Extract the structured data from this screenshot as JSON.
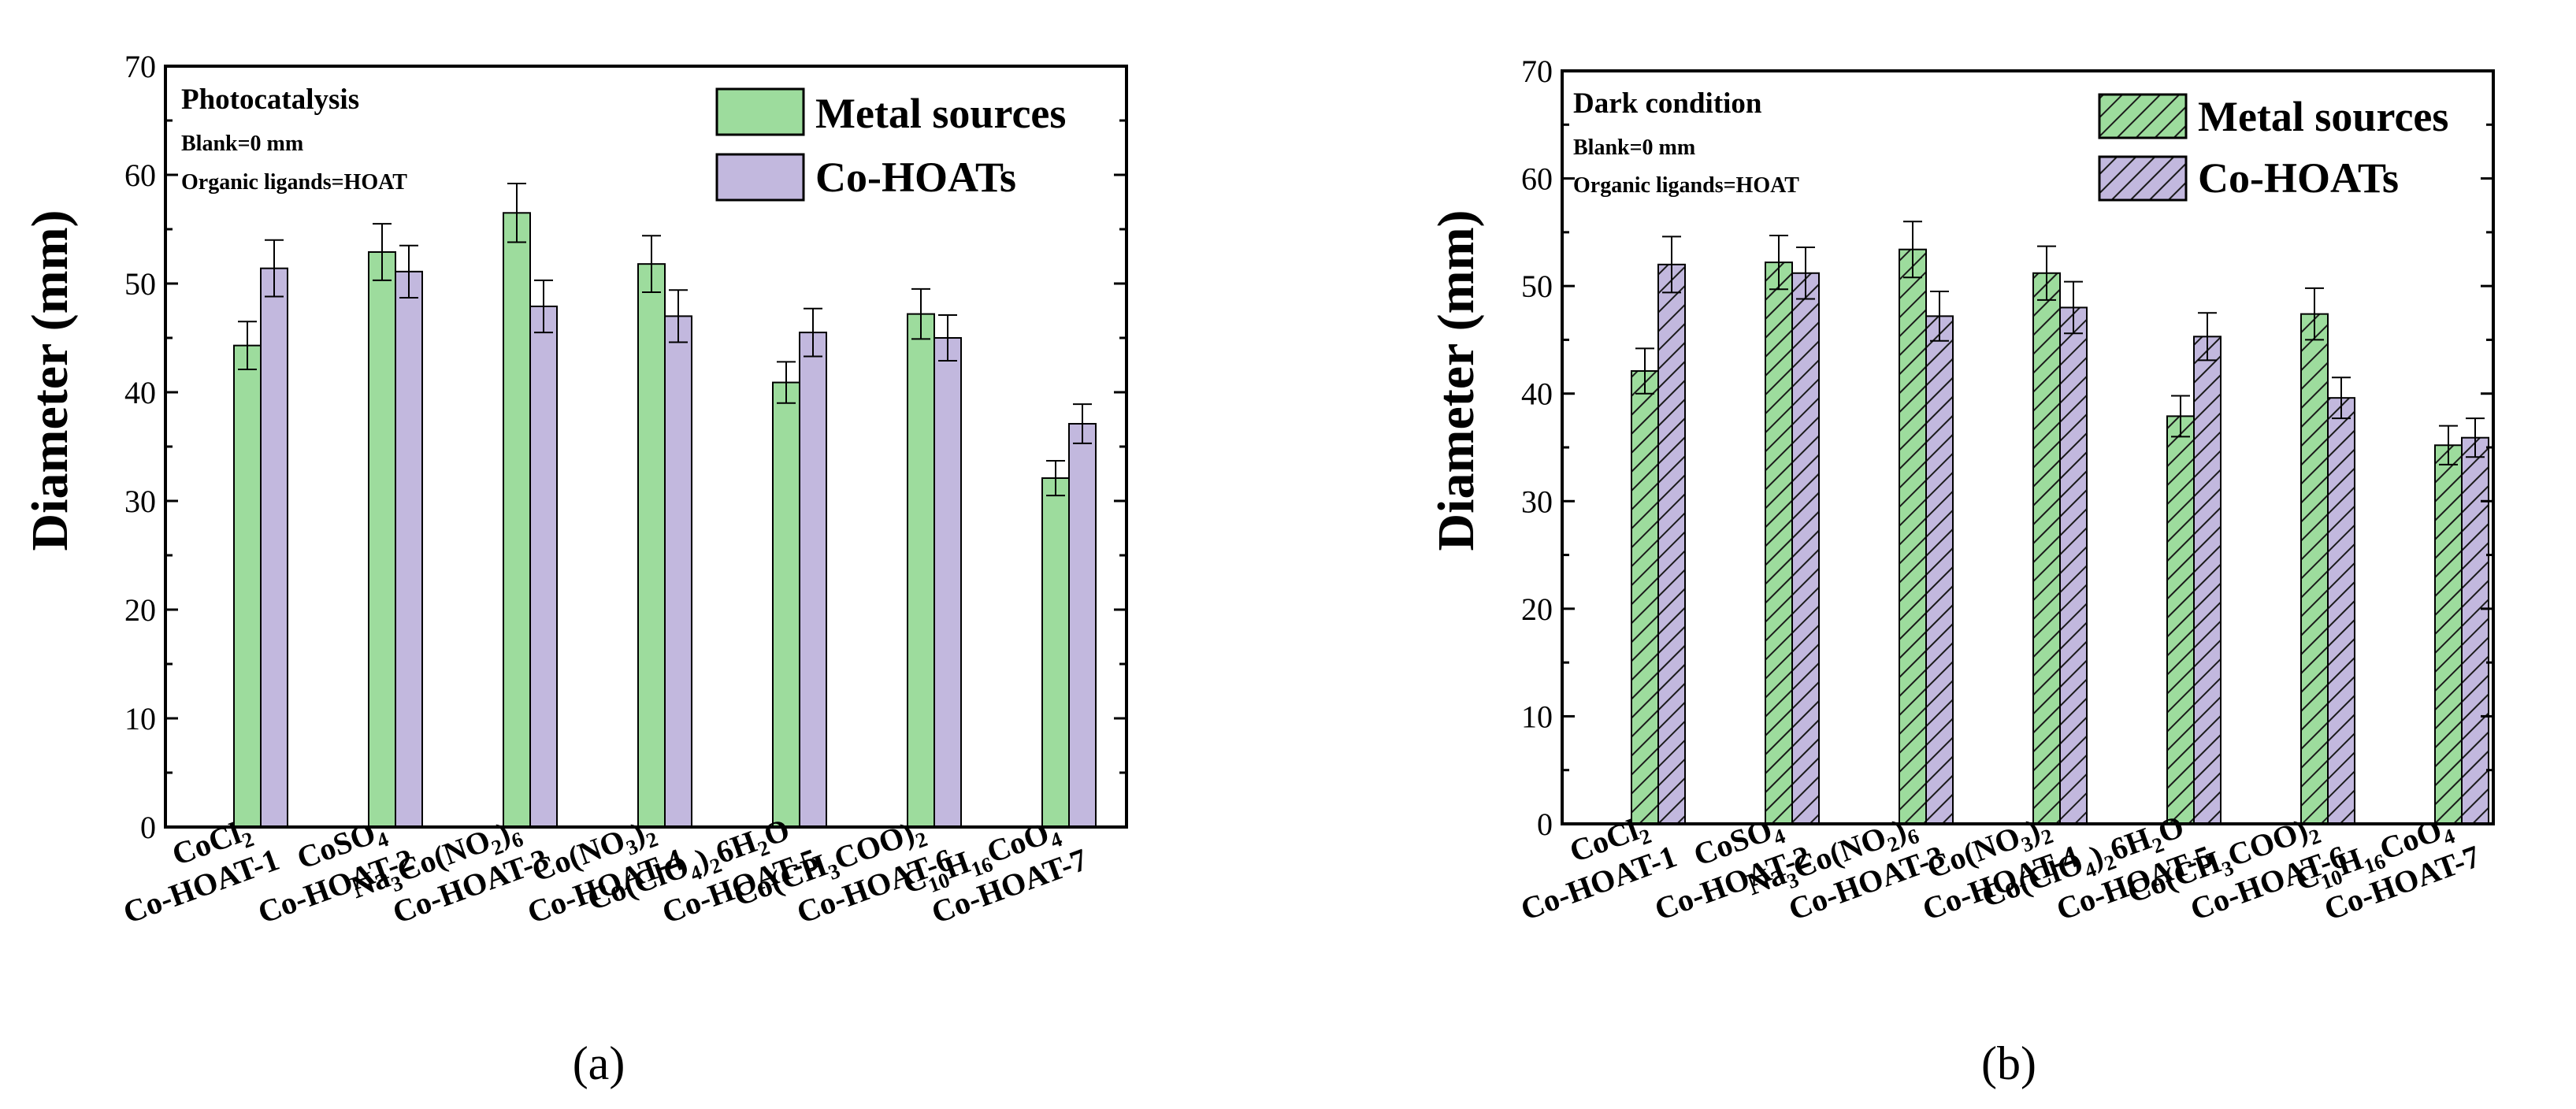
{
  "chart_data": [
    {
      "panel": "a",
      "type": "bar",
      "caption": "(a)",
      "title": "Photocatalysis",
      "annotations": [
        "Blank=0 mm",
        "Organic ligands=HOAT"
      ],
      "ylabel": "Diameter (mm)",
      "xlabel": "",
      "ylim": [
        0,
        70
      ],
      "yticks": [
        0,
        10,
        20,
        30,
        40,
        50,
        60,
        70
      ],
      "grid": false,
      "legend_position": "top-right",
      "pattern": "solid",
      "categories": [
        {
          "metal": [
            "CoCl",
            {
              "sub": "2"
            }
          ],
          "hoat": "Co-HOAT-1"
        },
        {
          "metal": [
            "CoSO",
            {
              "sub": "4"
            }
          ],
          "hoat": "Co-HOAT-2"
        },
        {
          "metal": [
            "Na",
            {
              "sub": "3"
            },
            "Co(NO",
            {
              "sub": "2"
            },
            ")",
            {
              "sub": "6"
            }
          ],
          "hoat": "Co-HOAT-3"
        },
        {
          "metal": [
            "Co(NO",
            {
              "sub": "3"
            },
            ")",
            {
              "sub": "2"
            }
          ],
          "hoat": "Co-HOAT-4"
        },
        {
          "metal": [
            "Co(ClO",
            {
              "sub": "4"
            },
            ")",
            {
              "sub": "2"
            },
            "6H",
            {
              "sub": "2"
            },
            "O"
          ],
          "hoat": "Co-HOAT-5"
        },
        {
          "metal": [
            "Co(CH",
            {
              "sub": "3"
            },
            "COO)",
            {
              "sub": "2"
            }
          ],
          "hoat": "Co-HOAT-6"
        },
        {
          "metal": [
            "C",
            {
              "sub": "10"
            },
            "H",
            {
              "sub": "16"
            },
            "CoO",
            {
              "sub": "4"
            }
          ],
          "hoat": "Co-HOAT-7"
        }
      ],
      "series": [
        {
          "name": "Metal sources",
          "color": "#9ddc9d",
          "values": [
            44.3,
            52.9,
            56.5,
            51.8,
            40.9,
            47.2,
            32.1
          ],
          "errors": [
            2.2,
            2.6,
            2.7,
            2.6,
            1.9,
            2.3,
            1.6
          ]
        },
        {
          "name": "Co-HOATs",
          "color": "#c2b8de",
          "values": [
            51.4,
            51.1,
            47.9,
            47.0,
            45.5,
            45.0,
            37.1
          ],
          "errors": [
            2.6,
            2.4,
            2.4,
            2.4,
            2.2,
            2.1,
            1.8
          ]
        }
      ]
    },
    {
      "panel": "b",
      "type": "bar",
      "caption": "(b)",
      "title": "Dark condition",
      "annotations": [
        "Blank=0 mm",
        "Organic ligands=HOAT"
      ],
      "ylabel": "Diameter (mm)",
      "xlabel": "",
      "ylim": [
        0,
        70
      ],
      "yticks": [
        0,
        10,
        20,
        30,
        40,
        50,
        60,
        70
      ],
      "grid": false,
      "legend_position": "top-right",
      "pattern": "hatched",
      "categories": [
        {
          "metal": [
            "CoCl",
            {
              "sub": "2"
            }
          ],
          "hoat": "Co-HOAT-1"
        },
        {
          "metal": [
            "CoSO",
            {
              "sub": "4"
            }
          ],
          "hoat": "Co-HOAT-2"
        },
        {
          "metal": [
            "Na",
            {
              "sub": "3"
            },
            "Co(NO",
            {
              "sub": "2"
            },
            ")",
            {
              "sub": "6"
            }
          ],
          "hoat": "Co-HOAT-3"
        },
        {
          "metal": [
            "Co(NO",
            {
              "sub": "3"
            },
            ")",
            {
              "sub": "2"
            }
          ],
          "hoat": "Co-HOAT-4"
        },
        {
          "metal": [
            "Co(ClO",
            {
              "sub": "4"
            },
            ")",
            {
              "sub": "2"
            },
            "6H",
            {
              "sub": "2"
            },
            "O"
          ],
          "hoat": "Co-HOAT-5"
        },
        {
          "metal": [
            "Co(CH",
            {
              "sub": "3"
            },
            "COO)",
            {
              "sub": "2"
            }
          ],
          "hoat": "Co-HOAT-6"
        },
        {
          "metal": [
            "C",
            {
              "sub": "10"
            },
            "H",
            {
              "sub": "16"
            },
            "CoO",
            {
              "sub": "4"
            }
          ],
          "hoat": "Co-HOAT-7"
        }
      ],
      "series": [
        {
          "name": "Metal sources",
          "color": "#9ddc9d",
          "values": [
            42.1,
            52.2,
            53.4,
            51.2,
            37.9,
            47.4,
            35.2
          ],
          "errors": [
            2.1,
            2.5,
            2.6,
            2.5,
            1.9,
            2.4,
            1.8
          ]
        },
        {
          "name": "Co-HOATs",
          "color": "#c2b8de",
          "values": [
            52.0,
            51.2,
            47.2,
            48.0,
            45.3,
            39.6,
            35.9
          ],
          "errors": [
            2.6,
            2.4,
            2.3,
            2.4,
            2.2,
            1.9,
            1.8
          ]
        }
      ]
    }
  ]
}
